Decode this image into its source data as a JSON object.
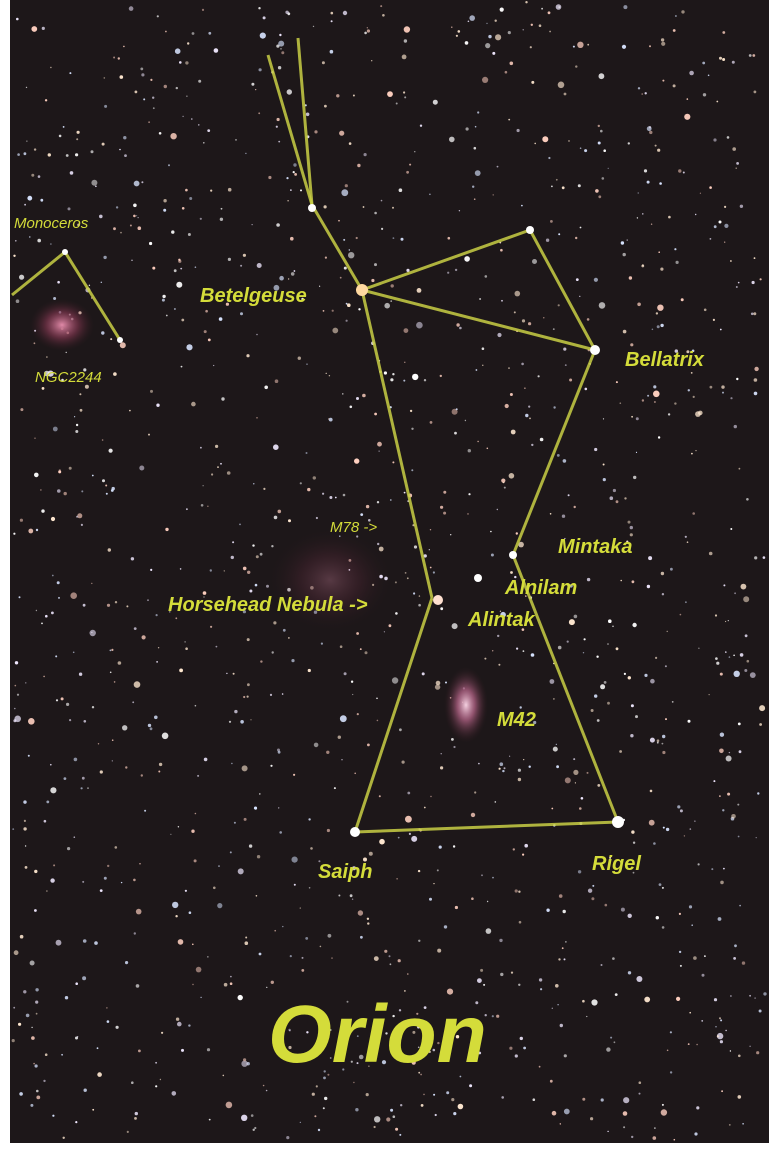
{
  "title": "Orion",
  "labels": {
    "monoceros": "Monoceros",
    "ngc2244": "NGC2244",
    "betelgeuse": "Betelgeuse",
    "bellatrix": "Bellatrix",
    "m78": "M78 ->",
    "mintaka": "Mintaka",
    "alnilam": "Alnilam",
    "horsehead": "Horsehead Nebula ->",
    "alintak": "Alintak",
    "m42": "M42",
    "saiph": "Saiph",
    "rigel": "Rigel"
  }
}
